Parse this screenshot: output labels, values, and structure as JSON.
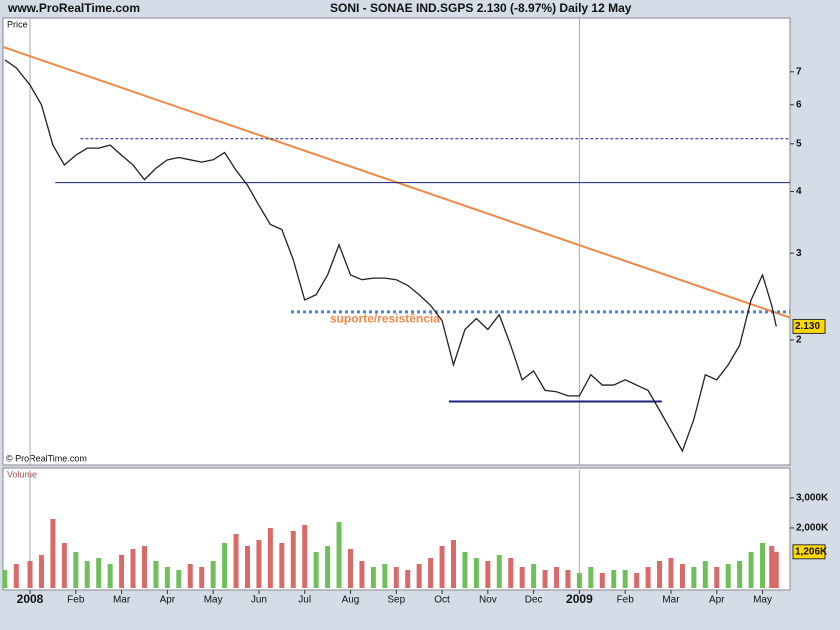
{
  "site": "www.ProRealTime.com",
  "title": "SONI - SONAE IND.SGPS    2.130 (-8.97%)    Daily  12 May",
  "copyright": "© ProRealTime.com",
  "chart_data": [
    {
      "type": "line",
      "ylabel": "Price",
      "log_scale": true,
      "color": "#222222",
      "x": [
        -0.55,
        -0.3,
        0,
        0.25,
        0.5,
        0.75,
        1,
        1.25,
        1.5,
        1.75,
        2,
        2.25,
        2.5,
        2.75,
        3,
        3.25,
        3.5,
        3.75,
        4,
        4.25,
        4.5,
        4.75,
        5,
        5.25,
        5.5,
        5.75,
        6,
        6.25,
        6.5,
        6.75,
        7,
        7.25,
        7.5,
        7.75,
        8,
        8.25,
        8.5,
        8.75,
        9,
        9.25,
        9.5,
        9.75,
        10,
        10.25,
        10.5,
        10.75,
        11,
        11.25,
        11.5,
        11.75,
        12,
        12.25,
        12.5,
        12.75,
        13,
        13.25,
        13.5,
        13.75,
        14,
        14.25,
        14.5,
        14.75,
        15,
        15.25,
        15.5,
        15.75,
        16,
        16.2,
        16.3
      ],
      "values": [
        7.4,
        7.13,
        6.58,
        6.0,
        4.97,
        4.53,
        4.74,
        4.9,
        4.9,
        4.97,
        4.74,
        4.53,
        4.23,
        4.46,
        4.64,
        4.69,
        4.64,
        4.59,
        4.64,
        4.8,
        4.42,
        4.12,
        3.75,
        3.43,
        3.35,
        2.91,
        2.41,
        2.47,
        2.71,
        3.12,
        2.71,
        2.65,
        2.67,
        2.67,
        2.65,
        2.58,
        2.47,
        2.35,
        2.19,
        1.78,
        2.1,
        2.21,
        2.1,
        2.25,
        1.95,
        1.66,
        1.73,
        1.58,
        1.57,
        1.54,
        1.54,
        1.7,
        1.62,
        1.62,
        1.66,
        1.62,
        1.58,
        1.44,
        1.31,
        1.19,
        1.38,
        1.7,
        1.66,
        1.78,
        1.95,
        2.41,
        2.71,
        2.35,
        2.13
      ],
      "last_label": "2.130",
      "xlim": [
        -0.59,
        16.6
      ],
      "ylim": [
        1.115,
        9.0
      ],
      "yticks": [
        2,
        3,
        4,
        5,
        6,
        7
      ],
      "lines": [
        {
          "x": [
            -0.59,
            16.6
          ],
          "y": [
            7.86,
            2.22
          ],
          "color": "#f08848",
          "dash": "none",
          "width": 2
        },
        {
          "x": [
            1.1,
            16.6
          ],
          "y": [
            5.12,
            5.12
          ],
          "color": "#1a237e",
          "dash": "3 2",
          "width": 1
        },
        {
          "x": [
            0.55,
            16.6
          ],
          "y": [
            4.17,
            4.17
          ],
          "color": "#1a237e",
          "dash": "none",
          "width": 1
        },
        {
          "x": [
            5.7,
            16.6
          ],
          "y": [
            2.28,
            2.28
          ],
          "color": "#4a80e8",
          "dash": "3 3",
          "width": 3
        },
        {
          "x": [
            9.15,
            13.8
          ],
          "y": [
            1.5,
            1.5
          ],
          "color": "#1a237e",
          "dash": "none",
          "width": 2
        }
      ],
      "annotation": {
        "text": "suporte/resistência",
        "x": 6.55,
        "y": 2.2,
        "color": "#f08848"
      }
    },
    {
      "type": "bar",
      "ylabel": "Volume",
      "x": [
        -0.55,
        -0.3,
        0,
        0.25,
        0.5,
        0.75,
        1,
        1.25,
        1.5,
        1.75,
        2,
        2.25,
        2.5,
        2.75,
        3,
        3.25,
        3.5,
        3.75,
        4,
        4.25,
        4.5,
        4.75,
        5,
        5.25,
        5.5,
        5.75,
        6,
        6.25,
        6.5,
        6.75,
        7,
        7.25,
        7.5,
        7.75,
        8,
        8.25,
        8.5,
        8.75,
        9,
        9.25,
        9.5,
        9.75,
        10,
        10.25,
        10.5,
        10.75,
        11,
        11.25,
        11.5,
        11.75,
        12,
        12.25,
        12.5,
        12.75,
        13,
        13.25,
        13.5,
        13.75,
        14,
        14.25,
        14.5,
        14.75,
        15,
        15.25,
        15.5,
        15.75,
        16,
        16.2,
        16.3
      ],
      "values": [
        600,
        800,
        900,
        1100,
        2300,
        1500,
        1200,
        900,
        1000,
        800,
        1100,
        1300,
        1400,
        900,
        700,
        600,
        800,
        700,
        900,
        1500,
        1800,
        1400,
        1600,
        2000,
        1500,
        1900,
        2100,
        1200,
        1400,
        2200,
        1300,
        900,
        700,
        800,
        700,
        600,
        800,
        1000,
        1400,
        1600,
        1200,
        1000,
        900,
        1100,
        1000,
        700,
        800,
        600,
        700,
        600,
        500,
        700,
        500,
        600,
        600,
        500,
        700,
        900,
        1000,
        800,
        700,
        900,
        700,
        800,
        900,
        1200,
        1500,
        1400,
        1206
      ],
      "up_color": "#6fbf5a",
      "down_color": "#d86a6a",
      "last_label": "1,206K",
      "xlim": [
        -0.59,
        16.6
      ],
      "ylim": [
        0,
        3930
      ],
      "yticks": [
        {
          "value": 2000,
          "label": "2,000K"
        },
        {
          "value": 3000,
          "label": "3,000K"
        }
      ],
      "xticks": [
        {
          "value": 0,
          "label": "2008"
        },
        {
          "value": 1,
          "label": "Feb"
        },
        {
          "value": 2,
          "label": "Mar"
        },
        {
          "value": 3,
          "label": "Apr"
        },
        {
          "value": 4,
          "label": "May"
        },
        {
          "value": 5,
          "label": "Jun"
        },
        {
          "value": 6,
          "label": "Jul"
        },
        {
          "value": 7,
          "label": "Aug"
        },
        {
          "value": 8,
          "label": "Sep"
        },
        {
          "value": 9,
          "label": "Oct"
        },
        {
          "value": 10,
          "label": "Nov"
        },
        {
          "value": 11,
          "label": "Dec"
        },
        {
          "value": 12,
          "label": "2009"
        },
        {
          "value": 13,
          "label": "Feb"
        },
        {
          "value": 14,
          "label": "Mar"
        },
        {
          "value": 15,
          "label": "Apr"
        },
        {
          "value": 16,
          "label": "May"
        }
      ]
    }
  ]
}
